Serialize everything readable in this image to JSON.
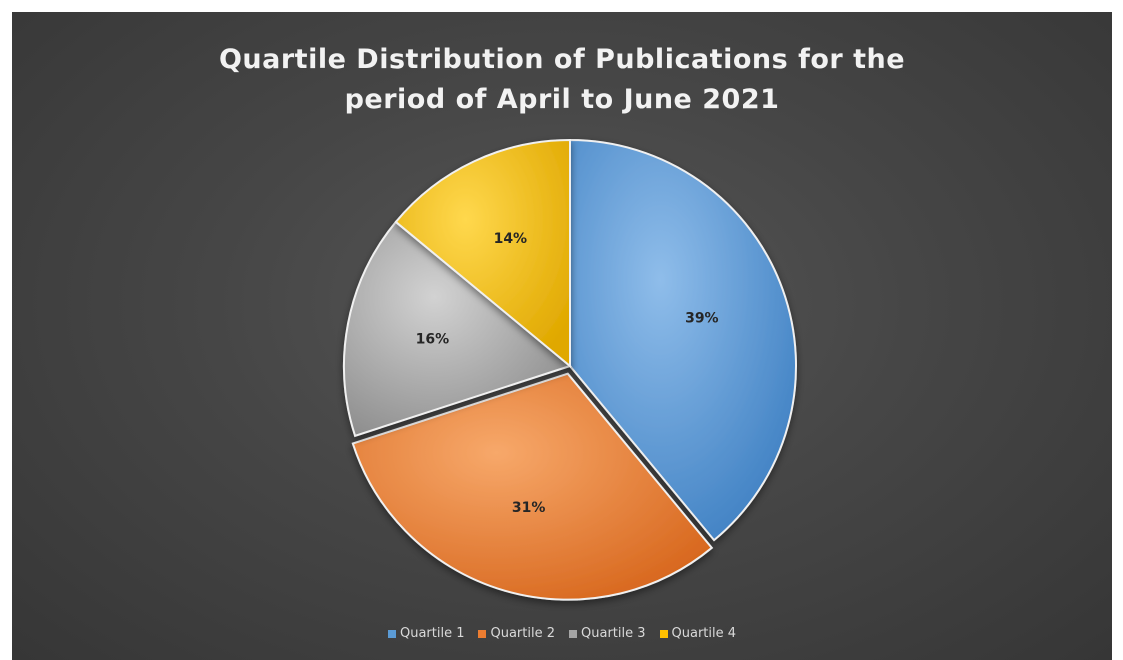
{
  "chart_data": {
    "type": "pie",
    "title": "Quartile Distribution of Publications for the period of April to June 2021",
    "title_lines": [
      "Quartile Distribution of Publications for the",
      "period of April to June 2021"
    ],
    "categories": [
      "Quartile 1",
      "Quartile 2",
      "Quartile 3",
      "Quartile 4"
    ],
    "values": [
      39,
      31,
      16,
      14
    ],
    "labels": [
      "39%",
      "31%",
      "16%",
      "14%"
    ],
    "colors": [
      "#5b9bd5",
      "#ed7d31",
      "#a5a5a5",
      "#ffc000"
    ],
    "legend_position": "bottom"
  }
}
